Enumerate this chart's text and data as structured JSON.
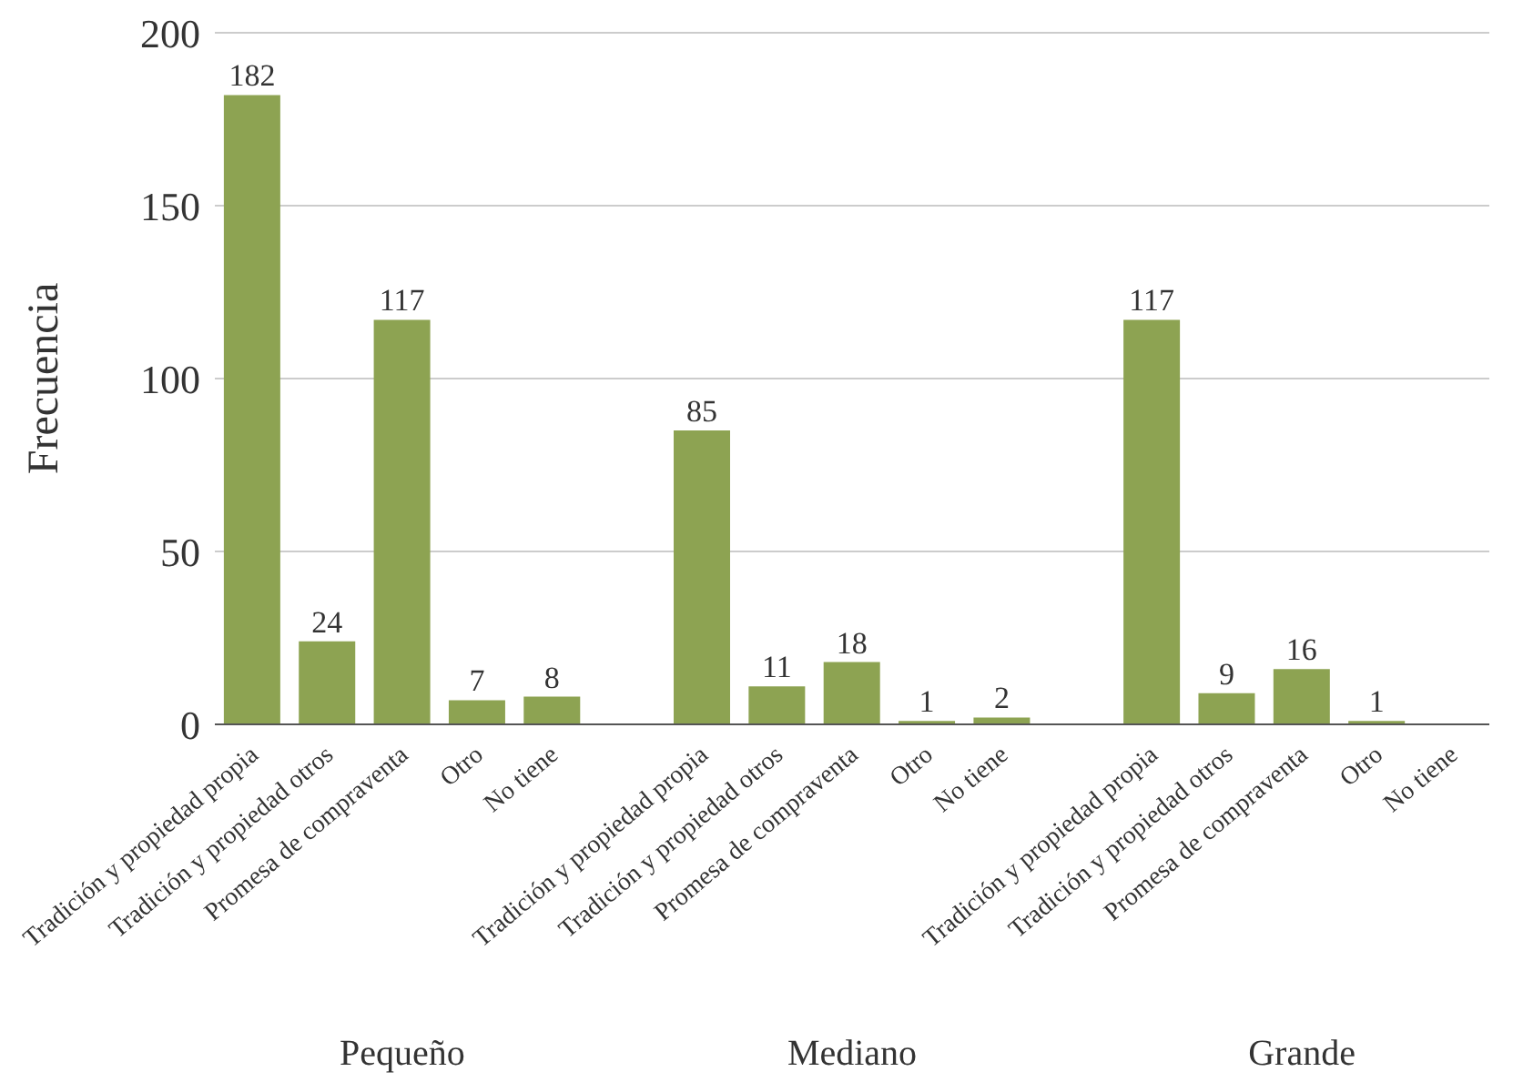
{
  "chart_data": {
    "type": "bar",
    "ylabel": "Frecuencia",
    "categories": [
      "Tradición y propiedad propia",
      "Tradición y propiedad otros",
      "Promesa de compraventa",
      "Otro",
      "No tiene",
      null,
      "Tradición y propiedad propia",
      "Tradición y propiedad otros",
      "Promesa de compraventa",
      "Otro",
      "No tiene",
      null,
      "Tradición y propiedad propia",
      "Tradición y propiedad otros",
      "Promesa de compraventa",
      "Otro",
      "No tiene"
    ],
    "values": [
      182,
      24,
      117,
      7,
      8,
      null,
      85,
      11,
      18,
      1,
      2,
      null,
      117,
      9,
      16,
      1,
      null
    ],
    "color": "#8da352",
    "ylim": [
      0,
      200
    ],
    "yticks": [
      0,
      50,
      100,
      150,
      200
    ],
    "grid": "y",
    "data_labels": true,
    "annotations": [
      "Pequeño",
      "Mediano",
      "Grande"
    ]
  }
}
